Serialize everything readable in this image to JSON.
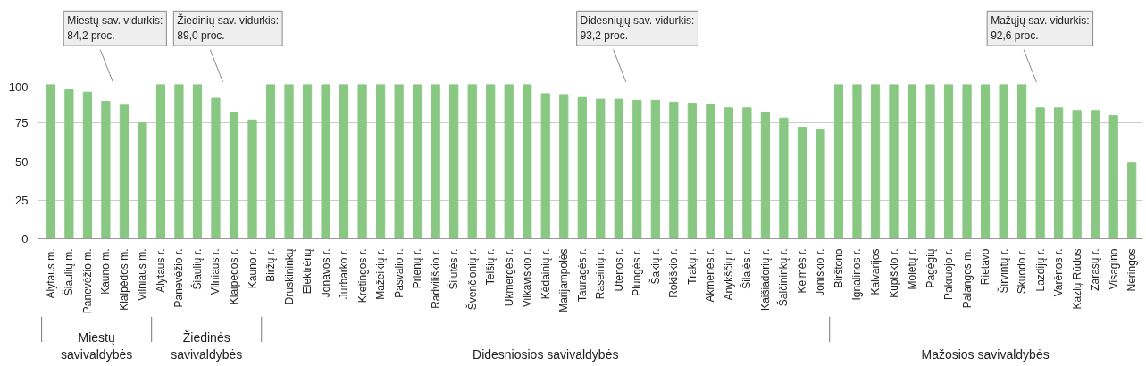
{
  "chart_data": {
    "type": "bar",
    "categories": [
      "Alytaus m.",
      "Šiaulių m.",
      "Panevėžio m.",
      "Kauno m.",
      "Klaipėdos m.",
      "Vilniaus m.",
      "Alytaus r.",
      "Panevėžio r.",
      "Šiaulių r.",
      "Vilniaus r.",
      "Klaipėdos r.",
      "Kauno r.",
      "Biržų r.",
      "Druskininkų",
      "Elektrėnų",
      "Jonavos r.",
      "Jurbarko r.",
      "Kretingos r.",
      "Mažeikių r.",
      "Pasvalio r.",
      "Prienų r.",
      "Radviliškio r.",
      "Šilutės r.",
      "Švenčionių r.",
      "Telšių r.",
      "Ukmergės r.",
      "Vilkaviškio r.",
      "Kėdainių r.",
      "Marijampolės",
      "Tauragės r.",
      "Raseinių r.",
      "Utenos r.",
      "Plungės r.",
      "Šakių r.",
      "Rokiškio r.",
      "Trakų r.",
      "Akmenės r.",
      "Anykščių r.",
      "Šilalės r.",
      "Kaišiadorių r.",
      "Šalčininkų r.",
      "Kelmės r.",
      "Joniškio r.",
      "Birštono",
      "Ignalinos r.",
      "Kalvarijos",
      "Kupiškio r.",
      "Molėtų r.",
      "Pagėgių",
      "Pakruojo r.",
      "Palangos m.",
      "Rietavo",
      "Širvintų r.",
      "Skuodo r.",
      "Lazdijų r.",
      "Varėnos r.",
      "Kazlų Rūdos",
      "Zarasų r.",
      "Visagino",
      "Neringos"
    ],
    "values": [
      100,
      96.5,
      95,
      89,
      86.5,
      75,
      100,
      100,
      100,
      91,
      82,
      77,
      100,
      100,
      100,
      100,
      100,
      100,
      100,
      100,
      100,
      100,
      100,
      100,
      100,
      100,
      100,
      94,
      93.4,
      91.5,
      90.4,
      90.4,
      89.7,
      89.7,
      88.5,
      87.8,
      87.2,
      84.8,
      84.8,
      81.8,
      78.2,
      72.2,
      70.7,
      100,
      100,
      100,
      100,
      100,
      100,
      100,
      100,
      100,
      100,
      100,
      84.8,
      84.8,
      83.1,
      83.1,
      79.7,
      49
    ],
    "color": "#88c882",
    "ylim": [
      0,
      100
    ],
    "yticks": [
      0,
      25,
      50,
      75,
      100
    ],
    "grid": "y",
    "annotations": [
      "Miestų sav. vidurkis:\n84,2 proc.",
      "Žiedinių sav. vidurkis:\n89,0 proc.",
      "Didesniųjų sav. vidurkis:\n93,2 proc.",
      "Mažųjų sav. vidurkis:\n92,6 proc.",
      "Miestų\nsavivaldybės",
      "Žiedinės\nsavivaldybės",
      "Didesniosios savivaldybės",
      "Mažosios savivaldybės"
    ]
  }
}
